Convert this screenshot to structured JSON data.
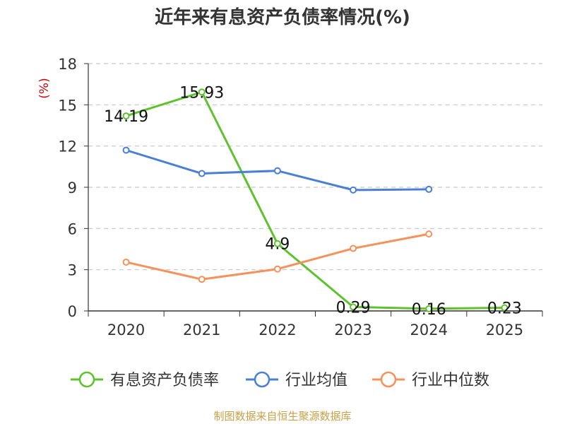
{
  "chart_data": {
    "type": "line",
    "title": "近年来有息资产负债率情况(%)",
    "ylabel": "(%)",
    "ylim": [
      0,
      18
    ],
    "yticks": [
      0,
      3,
      6,
      9,
      12,
      15,
      18
    ],
    "categories": [
      "2020",
      "2021",
      "2022",
      "2023",
      "2024",
      "2025"
    ],
    "grid": true,
    "legend": "bottom",
    "series": [
      {
        "name": "有息资产负债率",
        "color": "#5ec22d",
        "values": [
          14.19,
          15.93,
          4.9,
          0.29,
          0.16,
          0.23
        ],
        "labels": [
          "14.19",
          "15.93",
          "4.9",
          "0.29",
          "0.16",
          "0.23"
        ]
      },
      {
        "name": "行业均值",
        "color": "#4a7fd6",
        "values": [
          11.7,
          10.0,
          10.2,
          8.8,
          8.85,
          null
        ]
      },
      {
        "name": "行业中位数",
        "color": "#f5915a",
        "values": [
          3.55,
          2.3,
          3.05,
          4.55,
          5.6,
          null
        ]
      }
    ]
  },
  "source": "制图数据来自恒生聚源数据库"
}
